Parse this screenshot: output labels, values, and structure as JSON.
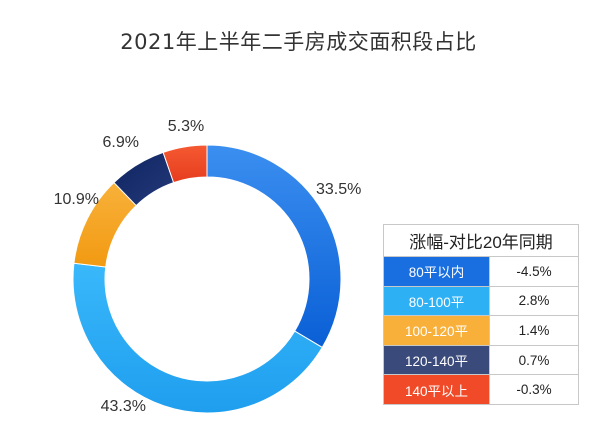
{
  "title": "2021年上半年二手房成交面积段占比",
  "chart_data": {
    "type": "pie",
    "donut": true,
    "title": "2021年上半年二手房成交面积段占比",
    "slices": [
      {
        "name": "80平以内",
        "value": 33.5,
        "label": "33.5%",
        "color": "#1a73e8"
      },
      {
        "name": "80-100平",
        "value": 43.3,
        "label": "43.3%",
        "color": "#29aaf0"
      },
      {
        "name": "100-120平",
        "value": 10.9,
        "label": "10.9%",
        "color": "#f5a623"
      },
      {
        "name": "120-140平",
        "value": 6.9,
        "label": "6.9%",
        "color": "#1b2f6b"
      },
      {
        "name": "140平以上",
        "value": 5.3,
        "label": "5.3%",
        "color": "#f04a2a"
      }
    ]
  },
  "table": {
    "header": "涨幅-对比20年同期",
    "rows": [
      {
        "category": "80平以内",
        "change": "-4.5%",
        "color": "#1a6fe0"
      },
      {
        "category": "80-100平",
        "change": "2.8%",
        "color": "#2eb0f5"
      },
      {
        "category": "100-120平",
        "change": "1.4%",
        "color": "#f8b03a"
      },
      {
        "category": "120-140平",
        "change": "0.7%",
        "color": "#3a4a7a"
      },
      {
        "category": "140平以上",
        "change": "-0.3%",
        "color": "#f04a28"
      }
    ]
  }
}
